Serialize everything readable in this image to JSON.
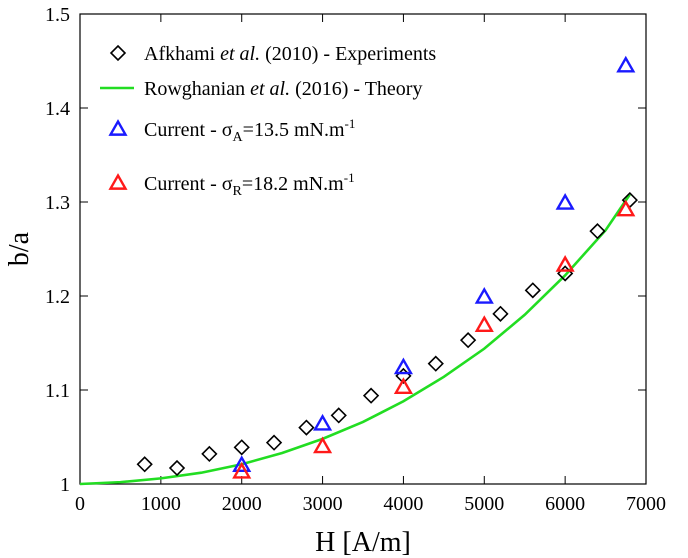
{
  "chart_data": {
    "type": "scatter",
    "xlabel": "H [A/m]",
    "ylabel": "b/a",
    "xlim": [
      0,
      7000
    ],
    "ylim": [
      1,
      1.5
    ],
    "x_ticks": [
      "0",
      "1000",
      "2000",
      "3000",
      "4000",
      "5000",
      "6000",
      "7000"
    ],
    "y_ticks": [
      "1",
      "1.1",
      "1.2",
      "1.3",
      "1.4",
      "1.5"
    ],
    "x_tick_values": [
      0,
      1000,
      2000,
      3000,
      4000,
      5000,
      6000,
      7000
    ],
    "y_tick_values": [
      1,
      1.1,
      1.2,
      1.3,
      1.4,
      1.5
    ],
    "grid": false,
    "legend_position": "top-left",
    "series": [
      {
        "legend": {
          "prefix": "Afkhami ",
          "italic": "et al.",
          "suffix": " (2010) - Experiments"
        },
        "marker": "diamond",
        "color": "#000000",
        "x": [
          800,
          1200,
          1600,
          2000,
          2400,
          2800,
          3200,
          3600,
          4000,
          4400,
          4800,
          5200,
          5600,
          6000,
          6400,
          6800
        ],
        "y": [
          1.021,
          1.017,
          1.032,
          1.039,
          1.044,
          1.06,
          1.073,
          1.094,
          1.115,
          1.128,
          1.153,
          1.181,
          1.206,
          1.224,
          1.269,
          1.302
        ]
      },
      {
        "legend": {
          "prefix": "Rowghanian ",
          "italic": "et al.",
          "suffix": " (2016) - Theory"
        },
        "marker": "line",
        "color": "#22dd22",
        "x": [
          0,
          500,
          1000,
          1500,
          2000,
          2500,
          3000,
          3500,
          4000,
          4500,
          5000,
          5500,
          6000,
          6500,
          6800
        ],
        "y": [
          1.0,
          1.002,
          1.006,
          1.012,
          1.021,
          1.033,
          1.048,
          1.066,
          1.088,
          1.114,
          1.144,
          1.18,
          1.222,
          1.27,
          1.308
        ]
      },
      {
        "legend": {
          "prefix": "Current - σ",
          "sub": "A",
          "middle": "=13.5 mN.m",
          "sup": "-1"
        },
        "marker": "triangle",
        "color": "#1a1aff",
        "x": [
          2000,
          3000,
          4000,
          5000,
          6000,
          6750
        ],
        "y": [
          1.02,
          1.064,
          1.124,
          1.199,
          1.299,
          1.445
        ]
      },
      {
        "legend": {
          "prefix": "Current - σ",
          "sub": "R",
          "middle": "=18.2 mN.m",
          "sup": "-1"
        },
        "marker": "triangle",
        "color": "#ff1a1a",
        "x": [
          2000,
          3000,
          4000,
          5000,
          6000,
          6750
        ],
        "y": [
          1.013,
          1.04,
          1.103,
          1.169,
          1.233,
          1.292
        ]
      }
    ]
  }
}
